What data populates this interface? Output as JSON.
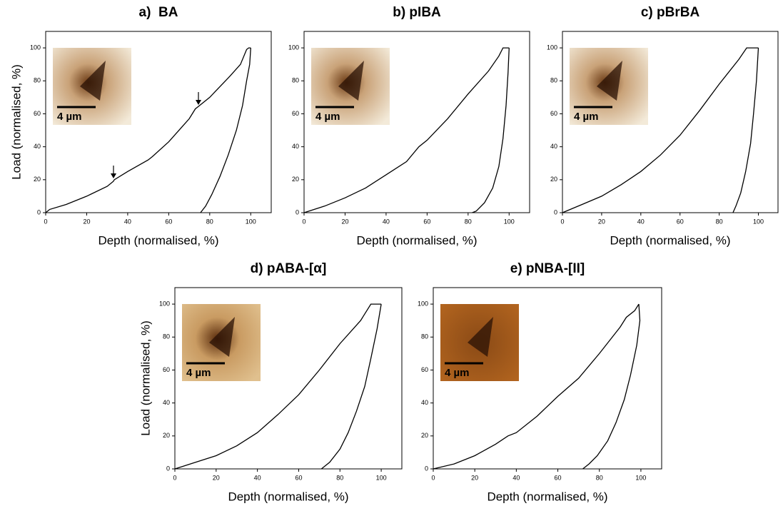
{
  "chart_data": [
    {
      "type": "line",
      "title": "a)  BA",
      "xlabel": "Depth (normalised, %)",
      "ylabel": "Load (normalised, %)",
      "inset_label": "4 µm",
      "xlim": [
        0,
        110
      ],
      "ylim": [
        0,
        110
      ],
      "xticks": [
        0,
        20,
        40,
        60,
        80,
        100
      ],
      "yticks": [
        0,
        20,
        40,
        60,
        80,
        100
      ],
      "series": [
        {
          "color": "#000000",
          "x": [
            0,
            2,
            10,
            20,
            30,
            33,
            33.5,
            40,
            50,
            52,
            60,
            70,
            73,
            74,
            80,
            90,
            95,
            98,
            99,
            100
          ],
          "values": [
            0,
            2,
            5,
            10,
            16,
            19,
            20,
            25,
            32,
            34,
            43,
            57,
            63,
            64,
            70,
            83,
            90,
            99,
            100,
            100
          ]
        },
        {
          "color": "#000000",
          "x": [
            100,
            99.5,
            98,
            96,
            93,
            89,
            85,
            81,
            78,
            75.5
          ],
          "values": [
            100,
            90,
            80,
            65,
            50,
            35,
            22,
            11,
            4,
            0
          ]
        }
      ]
    },
    {
      "type": "line",
      "title": "b) pIBA",
      "xlabel": "Depth (normalised, %)",
      "inset_label": "4 µm",
      "xlim": [
        0,
        110
      ],
      "ylim": [
        0,
        110
      ],
      "xticks": [
        0,
        20,
        40,
        60,
        80,
        100
      ],
      "yticks": [
        0,
        20,
        40,
        60,
        80,
        100
      ],
      "series": [
        {
          "color": "#000000",
          "x": [
            0,
            10,
            20,
            30,
            40,
            50,
            56,
            60,
            70,
            80,
            90,
            95,
            97,
            100
          ],
          "values": [
            0,
            4,
            9,
            15,
            23,
            31,
            40,
            44,
            57,
            72,
            86,
            95,
            100,
            100
          ]
        },
        {
          "color": "#000000",
          "x": [
            100,
            99.5,
            98.5,
            97,
            95,
            92,
            88,
            84,
            82
          ],
          "values": [
            100,
            85,
            65,
            45,
            28,
            15,
            6,
            1,
            0
          ]
        }
      ]
    },
    {
      "type": "line",
      "title": "c) pBrBA",
      "xlabel": "Depth (normalised, %)",
      "inset_label": "4 µm",
      "xlim": [
        0,
        110
      ],
      "ylim": [
        0,
        110
      ],
      "xticks": [
        0,
        20,
        40,
        60,
        80,
        100
      ],
      "yticks": [
        0,
        20,
        40,
        60,
        80,
        100
      ],
      "series": [
        {
          "color": "#000000",
          "x": [
            0,
            10,
            20,
            30,
            40,
            50,
            60,
            70,
            80,
            90,
            94,
            100
          ],
          "values": [
            0,
            5,
            10,
            17,
            25,
            35,
            47,
            62,
            78,
            93,
            100,
            100
          ]
        },
        {
          "color": "#000000",
          "x": [
            100,
            99,
            97.5,
            96,
            93.5,
            91,
            88.5,
            87
          ],
          "values": [
            100,
            80,
            60,
            42,
            25,
            12,
            4,
            0
          ]
        }
      ]
    },
    {
      "type": "line",
      "title": "d) pABA-[α]",
      "xlabel": "Depth (normalised, %)",
      "ylabel": "Load (normalised, %)",
      "inset_label": "4 µm",
      "xlim": [
        0,
        110
      ],
      "ylim": [
        0,
        110
      ],
      "xticks": [
        0,
        20,
        40,
        60,
        80,
        100
      ],
      "yticks": [
        0,
        20,
        40,
        60,
        80,
        100
      ],
      "series": [
        {
          "color": "#000000",
          "x": [
            0,
            5,
            10,
            20,
            30,
            40,
            50,
            60,
            70,
            80,
            90,
            95,
            100
          ],
          "values": [
            0,
            2,
            4,
            8,
            14,
            22,
            33,
            45,
            60,
            76,
            90,
            100,
            100
          ]
        },
        {
          "color": "#000000",
          "x": [
            100,
            98,
            95,
            92,
            88,
            84,
            80,
            75,
            71
          ],
          "values": [
            100,
            85,
            67,
            50,
            35,
            22,
            12,
            4,
            0
          ]
        }
      ]
    },
    {
      "type": "line",
      "title": "e) pNBA-[II]",
      "xlabel": "Depth (normalised, %)",
      "inset_label": "4 µm",
      "xlim": [
        0,
        110
      ],
      "ylim": [
        0,
        110
      ],
      "xticks": [
        0,
        20,
        40,
        60,
        80,
        100
      ],
      "yticks": [
        0,
        20,
        40,
        60,
        80,
        100
      ],
      "series": [
        {
          "color": "#000000",
          "x": [
            0,
            10,
            20,
            30,
            36,
            40,
            50,
            60,
            70,
            80,
            90,
            93,
            97,
            99
          ],
          "values": [
            0,
            3,
            8,
            15,
            20,
            22,
            32,
            44,
            55,
            70,
            86,
            92,
            96,
            100
          ]
        },
        {
          "color": "#000000",
          "x": [
            99,
            99.5,
            98,
            95,
            92,
            88,
            84,
            79,
            75,
            72
          ],
          "values": [
            100,
            90,
            75,
            57,
            42,
            28,
            17,
            8,
            3,
            0
          ]
        }
      ]
    }
  ]
}
